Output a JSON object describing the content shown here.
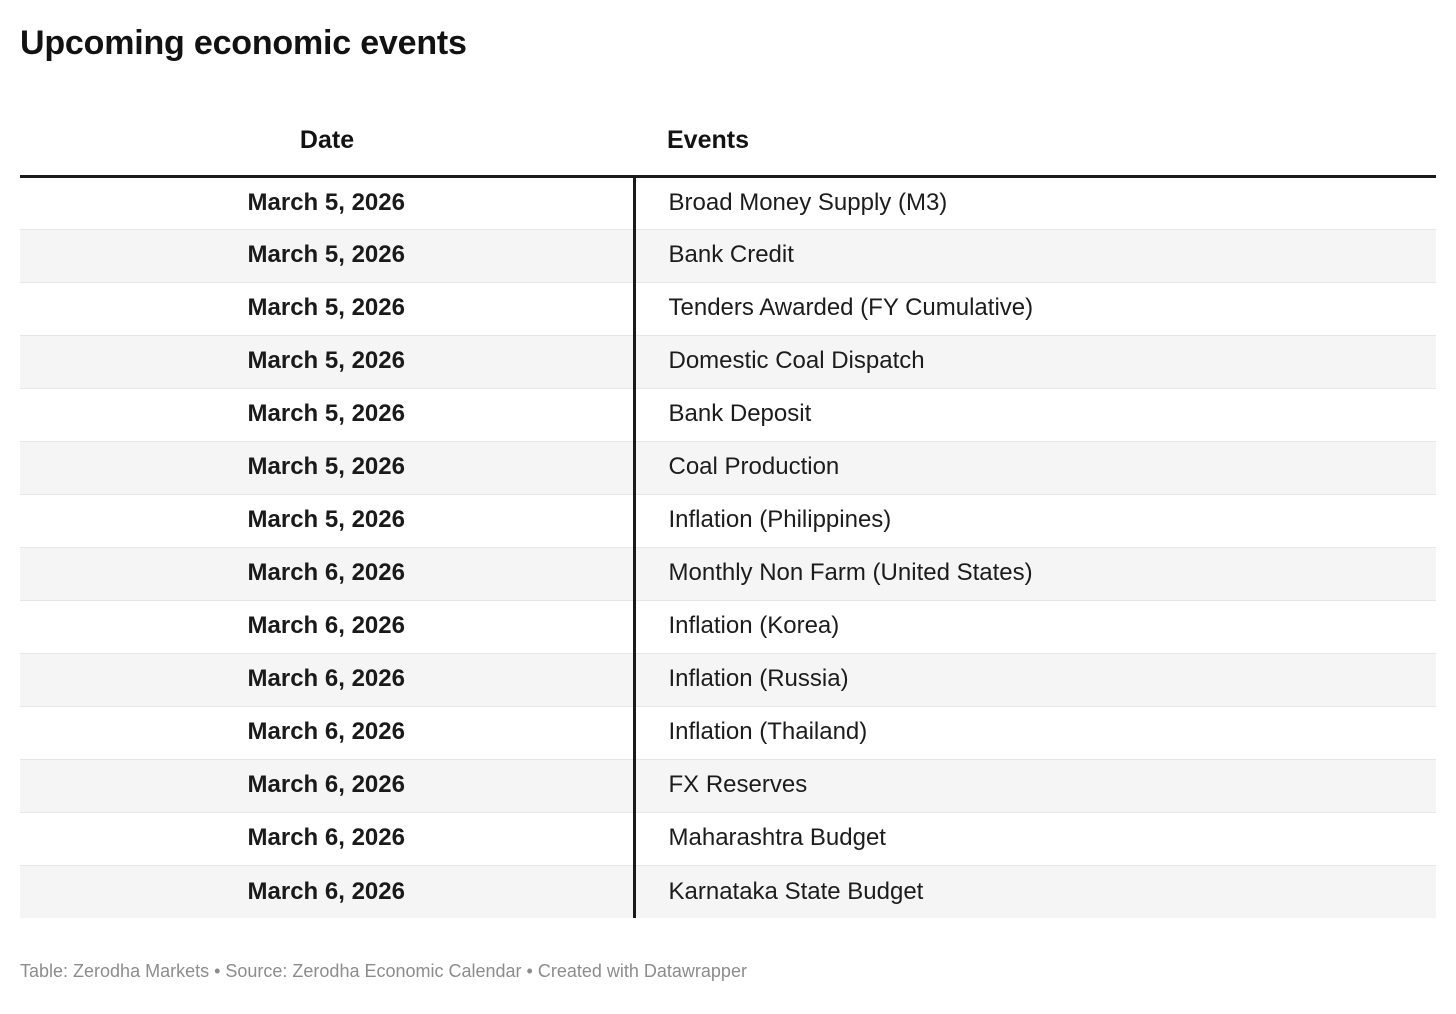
{
  "page": {
    "title": "Upcoming economic events"
  },
  "chart_data": {
    "type": "table",
    "title": "Upcoming economic events",
    "columns": [
      "Date",
      "Events"
    ],
    "rows": [
      [
        "March 5, 2026",
        "Broad Money Supply (M3)"
      ],
      [
        "March 5, 2026",
        "Bank Credit"
      ],
      [
        "March 5, 2026",
        "Tenders Awarded (FY Cumulative)"
      ],
      [
        "March 5, 2026",
        "Domestic Coal Dispatch"
      ],
      [
        "March 5, 2026",
        "Bank Deposit"
      ],
      [
        "March 5, 2026",
        "Coal Production"
      ],
      [
        "March 5, 2026",
        "Inflation (Philippines)"
      ],
      [
        "March 6, 2026",
        "Monthly Non Farm (United States)"
      ],
      [
        "March 6, 2026",
        "Inflation (Korea)"
      ],
      [
        "March 6, 2026",
        "Inflation (Russia)"
      ],
      [
        "March 6, 2026",
        "Inflation (Thailand)"
      ],
      [
        "March 6, 2026",
        "FX Reserves"
      ],
      [
        "March 6, 2026",
        "Maharashtra Budget"
      ],
      [
        "March 6, 2026",
        "Karnataka State Budget"
      ]
    ],
    "layout": {
      "striped": true,
      "date_column_align": "center",
      "events_column_align": "left",
      "header_rule": "thick-black",
      "column_divider": "thick-black-vertical"
    }
  },
  "footer": {
    "text": "Table: Zerodha Markets • Source: Zerodha Economic Calendar • Created with Datawrapper"
  },
  "colors": {
    "background": "#ffffff",
    "title_text": "#121212",
    "body_text": "#1c1c1c",
    "rule_black": "#1a1a1a",
    "stripe": "#f5f5f5",
    "row_divider": "#e6e6e6",
    "footer_text": "#8c8c8c"
  }
}
